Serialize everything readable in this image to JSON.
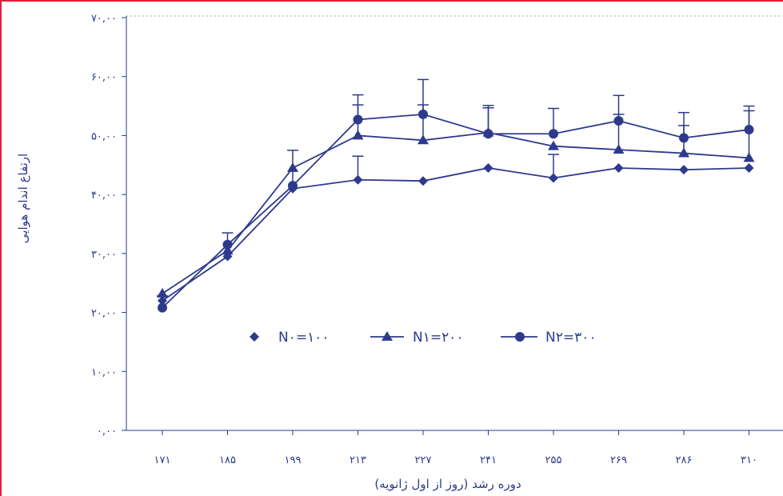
{
  "chart_data": {
    "type": "line",
    "title": "",
    "xlabel": "دوره رشد (روز از اول ژانویه)",
    "ylabel": "ارتفاع اندام هوایی",
    "categories": [
      "۱۷۱",
      "۱۸۵",
      "۱۹۹",
      "۲۱۳",
      "۲۲۷",
      "۲۴۱",
      "۲۵۵",
      "۲۶۹",
      "۲۸۶",
      "۳۱۰"
    ],
    "y_tick_labels": [
      "۰,۰۰",
      "۱۰,۰۰",
      "۲۰,۰۰",
      "۳۰,۰۰",
      "۴۰,۰۰",
      "۵۰,۰۰",
      "۶۰,۰۰",
      "۷۰,۰۰"
    ],
    "ylim": [
      0,
      70
    ],
    "grid": false,
    "legend_position": "center-left",
    "series": [
      {
        "name": "N۰=۱۰۰",
        "marker": "diamond",
        "values": [
          22.0,
          29.5,
          41.0,
          42.5,
          42.3,
          44.5,
          42.8,
          44.5,
          44.2,
          44.5
        ],
        "errors": [
          null,
          null,
          null,
          4.0,
          null,
          null,
          4.0,
          null,
          null,
          null
        ]
      },
      {
        "name": "N۱=۲۰۰",
        "marker": "triangle",
        "values": [
          23.2,
          30.5,
          44.5,
          50.0,
          49.2,
          50.5,
          48.2,
          47.6,
          47.0,
          46.2
        ],
        "errors": [
          null,
          null,
          null,
          5.2,
          6.0,
          4.2,
          null,
          6.0,
          4.7,
          8.0
        ]
      },
      {
        "name": "N۲=۳۰۰",
        "marker": "circle",
        "values": [
          20.8,
          31.5,
          41.5,
          52.7,
          53.6,
          50.3,
          50.3,
          52.5,
          49.6,
          51.0
        ],
        "errors": [
          2.0,
          2.0,
          6.0,
          4.2,
          5.9,
          4.8,
          4.3,
          4.3,
          4.3,
          4.0
        ]
      }
    ],
    "colors": {
      "line": "#2d3a8c",
      "frame_edge": "#e0203a",
      "background": "#ffffff"
    }
  }
}
